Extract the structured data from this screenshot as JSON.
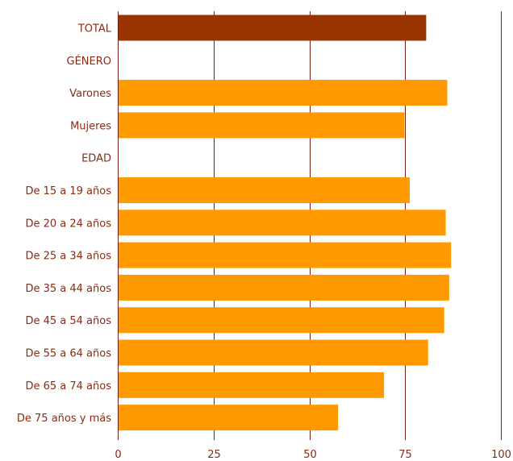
{
  "chart_data": {
    "type": "bar",
    "orientation": "horizontal",
    "title": "",
    "xlabel": "",
    "ylabel": "",
    "xlim": [
      0,
      100
    ],
    "xticks": [
      0,
      25,
      50,
      75,
      100
    ],
    "xtick_labels": [
      "0",
      "25",
      "50",
      "75",
      "100"
    ],
    "grid": true,
    "colors": {
      "total": "#993300",
      "bar": "#ff9900",
      "text": "#8a2a12",
      "grid": "#7a1f0e"
    },
    "categories": [
      "TOTAL",
      "GÉNERO",
      "Varones",
      "Mujeres",
      "EDAD",
      "De 15 a 19 años",
      "De 20 a 24 años",
      "De 25 a 34 años",
      "De 35 a 44 años",
      "De 45 a 54 años",
      "De 55 a 64 años",
      "De 65 a 74 años",
      "De 75 años y más"
    ],
    "values": [
      80.5,
      null,
      86,
      74.8,
      null,
      76.2,
      85.6,
      87,
      86.5,
      85.2,
      81,
      69.5,
      57.5
    ],
    "highlight": [
      true,
      false,
      false,
      false,
      false,
      false,
      false,
      false,
      false,
      false,
      false,
      false,
      false
    ]
  }
}
